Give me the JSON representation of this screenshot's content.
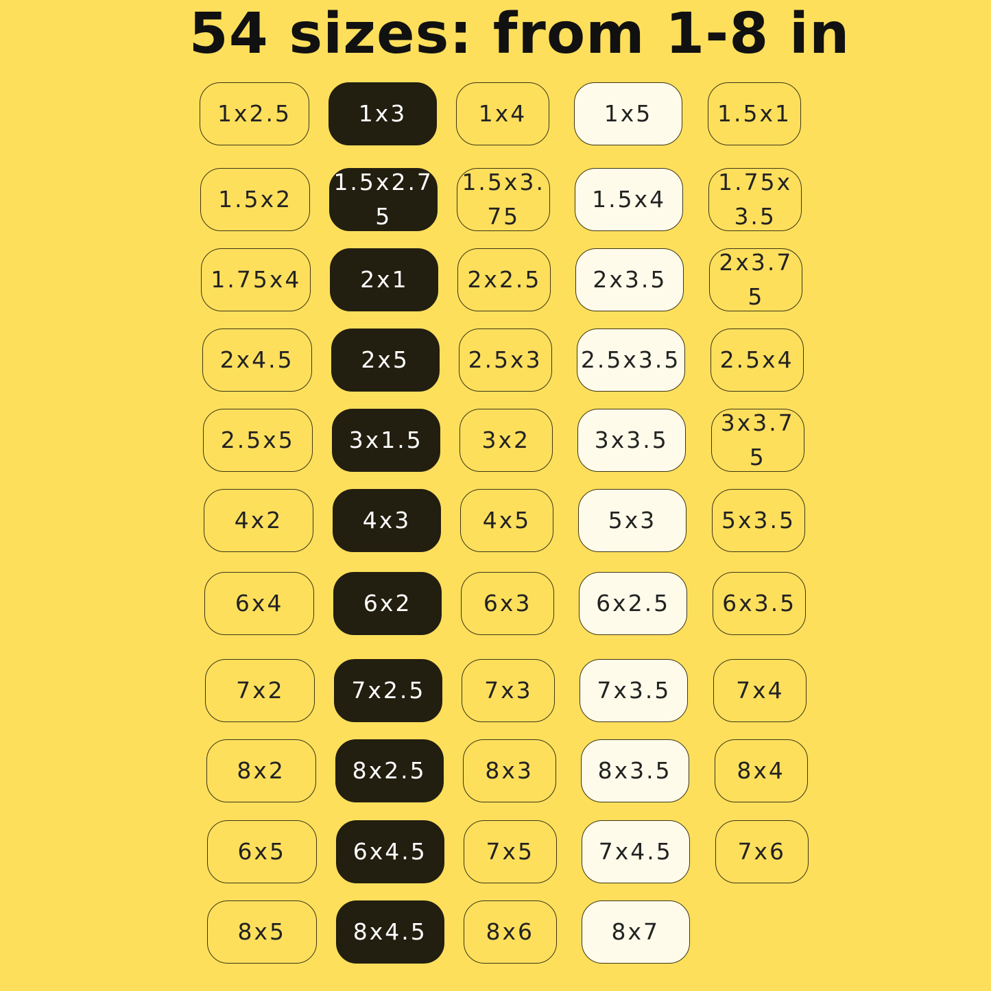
{
  "title": "54 sizes: from 1-8 in",
  "colors": {
    "background": "#fddf5c",
    "dark_chip": "#221e10",
    "light_chip": "#fffbea",
    "outline": "#3b3414"
  },
  "column_styles": [
    "plain",
    "dark",
    "plain",
    "light",
    "plain"
  ],
  "rows": [
    [
      "1x2.5",
      "1x3",
      "1x4",
      "1x5",
      "1.5x1"
    ],
    [
      "1.5x2",
      "1.5x2.75",
      "1.5x3.75",
      "1.5x4",
      "1.75x3.5"
    ],
    [
      "1.75x4",
      "2x1",
      "2x2.5",
      "2x3.5",
      "2x3.75"
    ],
    [
      "2x4.5",
      "2x5",
      "2.5x3",
      "2.5x3.5",
      "2.5x4"
    ],
    [
      "2.5x5",
      "3x1.5",
      "3x2",
      "3x3.5",
      "3x3.75"
    ],
    [
      "4x2",
      "4x3",
      "4x5",
      "5x3",
      "5x3.5"
    ],
    [
      "6x4",
      "6x2",
      "6x3",
      "6x2.5",
      "6x3.5"
    ],
    [
      "7x2",
      "7x2.5",
      "7x3",
      "7x3.5",
      "7x4"
    ],
    [
      "8x2",
      "8x2.5",
      "8x3",
      "8x3.5",
      "8x4"
    ],
    [
      "6x5",
      "6x4.5",
      "7x5",
      "7x4.5",
      "7x6"
    ],
    [
      "8x5",
      "8x4.5",
      "8x6",
      "8x7"
    ]
  ]
}
